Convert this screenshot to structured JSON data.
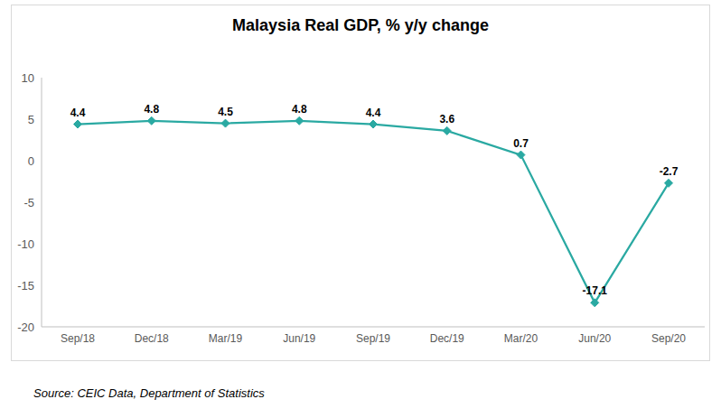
{
  "chart_data": {
    "type": "line",
    "title": "Malaysia Real GDP, % y/y change",
    "categories": [
      "Sep/18",
      "Dec/18",
      "Mar/19",
      "Jun/19",
      "Sep/19",
      "Dec/19",
      "Mar/20",
      "Jun/20",
      "Sep/20"
    ],
    "values": [
      4.4,
      4.8,
      4.5,
      4.8,
      4.4,
      3.6,
      0.7,
      -17.1,
      -2.7
    ],
    "color": "#2AA9A2",
    "marker": "diamond",
    "ylim": [
      -20,
      10
    ],
    "yticks": [
      -20,
      -15,
      -10,
      -5,
      0,
      5,
      10
    ],
    "grid": false,
    "data_labels": true,
    "source": "Source: CEIC Data, Department of Statistics"
  }
}
